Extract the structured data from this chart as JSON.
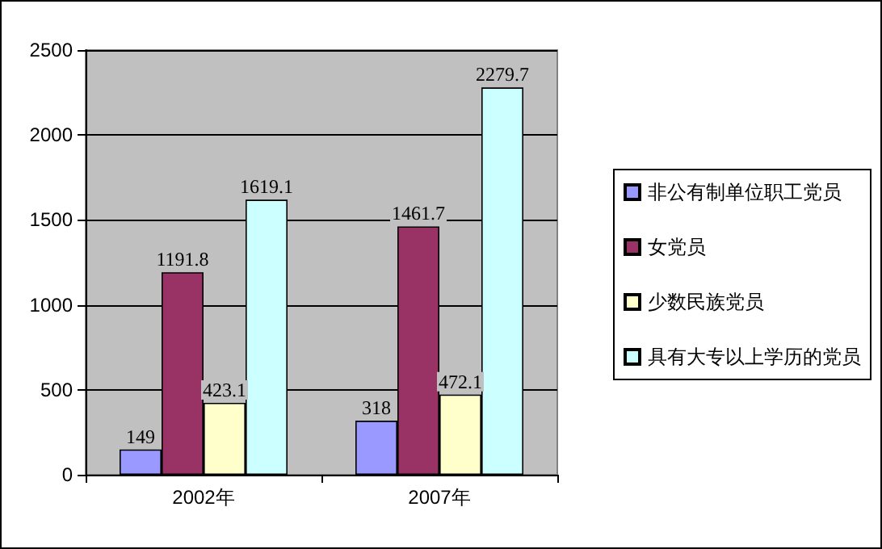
{
  "chart_data": {
    "type": "bar",
    "categories": [
      "2002年",
      "2007年"
    ],
    "series": [
      {
        "name": "非公有制单位职工党员",
        "color": "#9999ff",
        "values": [
          149,
          318
        ]
      },
      {
        "name": "女党员",
        "color": "#993366",
        "values": [
          1191.8,
          1461.7
        ]
      },
      {
        "name": "少数民族党员",
        "color": "#ffffcc",
        "values": [
          423.1,
          472.1
        ]
      },
      {
        "name": "具有大专以上学历的党员",
        "color": "#ccffff",
        "values": [
          1619.1,
          2279.7
        ]
      }
    ],
    "ylim": [
      0,
      2500
    ],
    "yticks": [
      0,
      500,
      1000,
      1500,
      2000,
      2500
    ],
    "grid": "y",
    "legend": "right",
    "data_labels": true
  }
}
